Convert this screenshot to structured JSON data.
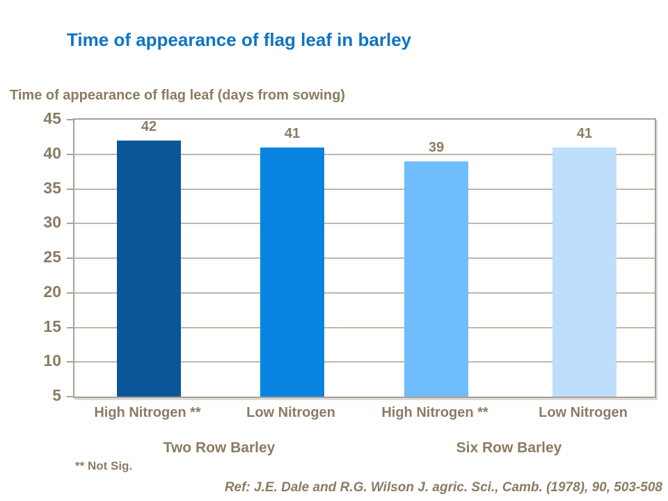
{
  "slide": {
    "title": "Time of appearance of flag leaf in barley",
    "footnote": "** Not Sig.",
    "reference": "Ref: J.E. Dale and R.G. Wilson J. agric. Sci., Camb. (1978), 90, 503-508"
  },
  "chart_data": {
    "type": "bar",
    "title": "Time of appearance of flag leaf in barley",
    "ylabel": "Time of appearance of flag leaf (days from sowing)",
    "xlabel": "",
    "categories": [
      "High Nitrogen **",
      "Low Nitrogen",
      "High Nitrogen **",
      "Low Nitrogen"
    ],
    "values": [
      42,
      41,
      39,
      41
    ],
    "groups": [
      {
        "label": "Two Row Barley",
        "bars": [
          0,
          1
        ]
      },
      {
        "label": "Six Row Barley",
        "bars": [
          2,
          3
        ]
      }
    ],
    "bar_colors": [
      "#0A5699",
      "#0884E0",
      "#6FBDFC",
      "#BDDFFB"
    ],
    "ylim": [
      5,
      45
    ],
    "ytick_step": 5,
    "yticks": [
      45,
      40,
      35,
      30,
      25,
      20,
      15,
      10,
      5
    ],
    "grid": true,
    "legend": "none"
  },
  "colors": {
    "title_text": "#0E74C4",
    "label_text": "#8B7B63",
    "axis_line": "#A8A095",
    "gridline": "#BFB7AB",
    "background": "#FFFFFF"
  }
}
